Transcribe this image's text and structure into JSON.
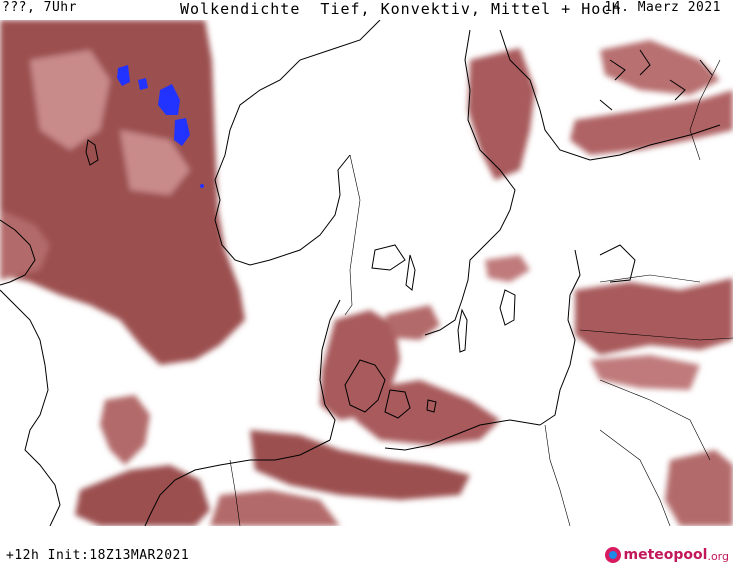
{
  "header": {
    "left_label": "???, 7Uhr",
    "title": "Wolkendichte  Tief, Konvektiv, Mittel + Hoch",
    "date": "14. Maerz 2021"
  },
  "footer": {
    "run_info": "+12h Init:18Z13MAR2021",
    "logo_word": "meteopool",
    "logo_tld": ".org"
  },
  "legend_colors": {
    "cloud_dark": "#9c4f50",
    "cloud_mid": "#b36a6a",
    "cloud_light": "#d39a9a",
    "convective": "#2233ff",
    "coastline": "#000000",
    "background": "#ffffff"
  }
}
